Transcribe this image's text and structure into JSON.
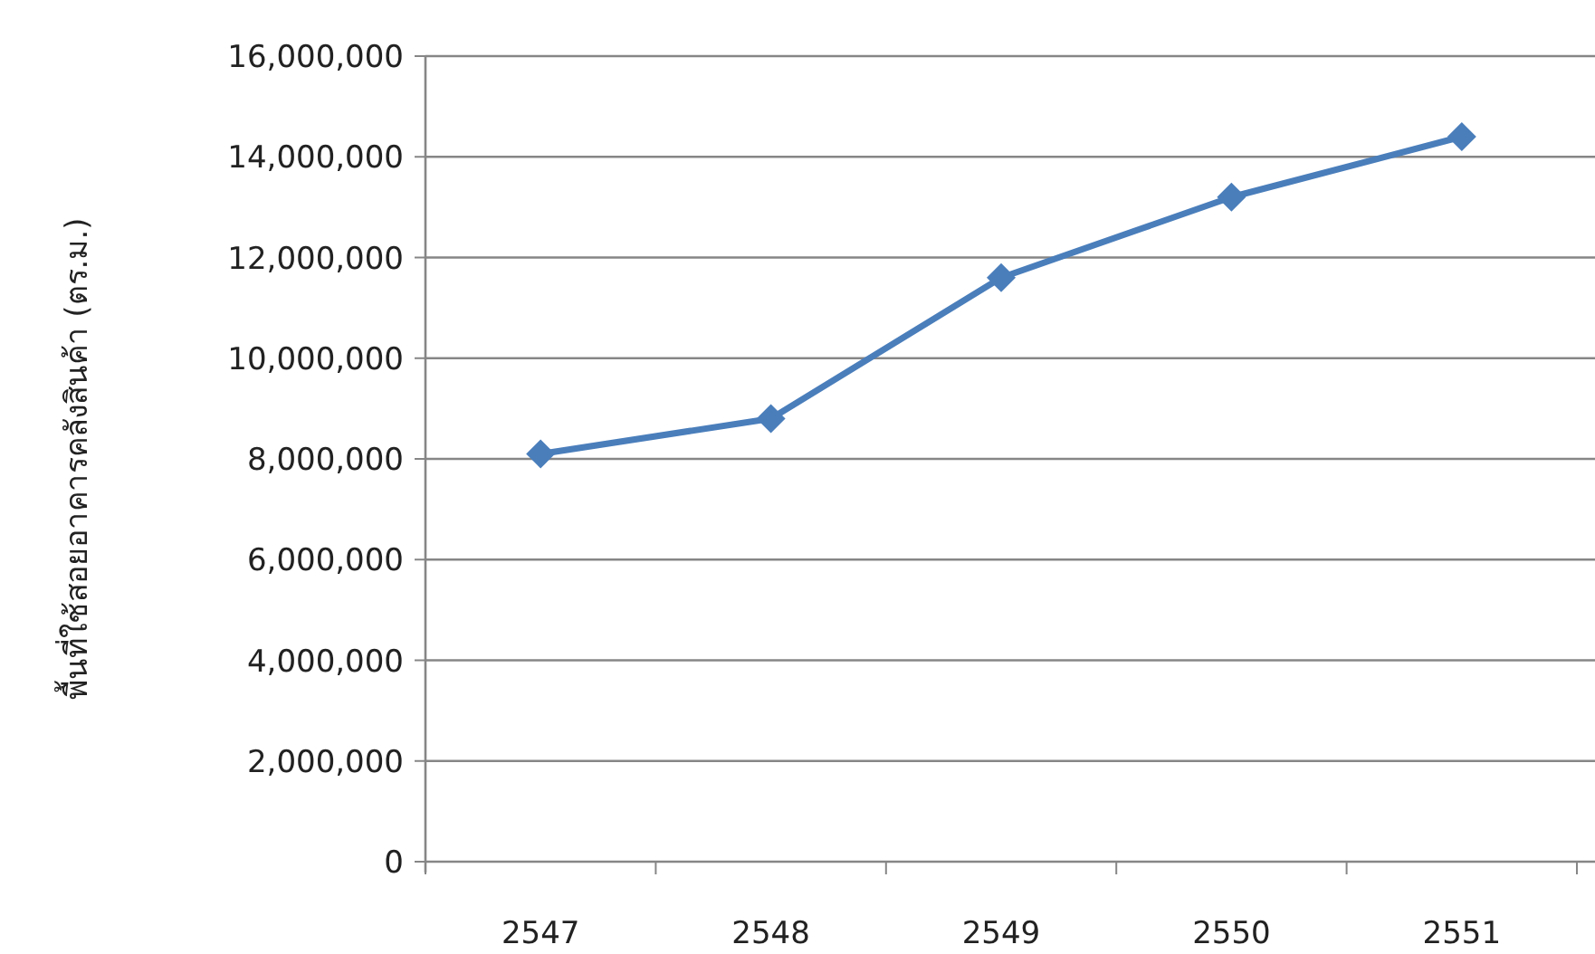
{
  "chart_data": {
    "type": "line",
    "ylabel": "พื้นที่ใช้สอยอาคารคลังสินค้า (ตร.ม.)",
    "categories": [
      "2547",
      "2548",
      "2549",
      "2550",
      "2551"
    ],
    "series": [
      {
        "color": "#4a7ebb",
        "values": [
          8100000,
          8800000,
          11600000,
          13200000,
          14400000
        ]
      }
    ],
    "ylim": [
      0,
      16000000
    ],
    "yticks": [
      {
        "value": 0,
        "label": "0"
      },
      {
        "value": 2000000,
        "label": "2,000,000"
      },
      {
        "value": 4000000,
        "label": "4,000,000"
      },
      {
        "value": 6000000,
        "label": "6,000,000"
      },
      {
        "value": 8000000,
        "label": "8,000,000"
      },
      {
        "value": 10000000,
        "label": "10,000,000"
      },
      {
        "value": 12000000,
        "label": "12,000,000"
      },
      {
        "value": 14000000,
        "label": "14,000,000"
      },
      {
        "value": 16000000,
        "label": "16,000,000"
      }
    ],
    "grid": "y",
    "marker": "diamond",
    "line_style": "solid"
  }
}
